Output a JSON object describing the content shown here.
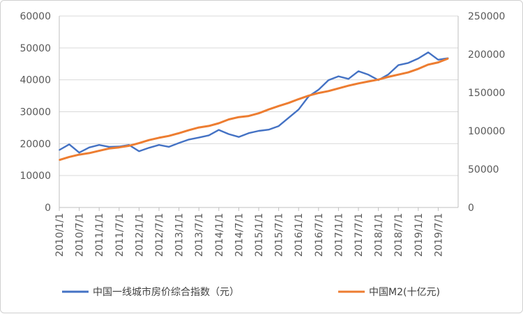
{
  "chart_data": {
    "type": "line",
    "title": "",
    "xlabel": "",
    "ylabel": "",
    "x_tick_labels": [
      "2010/1/1",
      "2010/7/1",
      "2011/1/1",
      "2011/7/1",
      "2012/1/1",
      "2012/7/1",
      "2013/1/1",
      "2013/7/1",
      "2014/1/1",
      "2014/7/1",
      "2015/1/1",
      "2015/7/1",
      "2016/1/1",
      "2016/7/1",
      "2017/1/1",
      "2017/7/1",
      "2018/1/1",
      "2018/7/1",
      "2019/1/1",
      "2019/7/1"
    ],
    "y_left_ticks": [
      "0",
      "10000",
      "20000",
      "30000",
      "40000",
      "50000",
      "60000"
    ],
    "y_right_ticks": [
      "0",
      "50000",
      "100000",
      "150000",
      "200000",
      "250000"
    ],
    "ylim_left": [
      0,
      60000
    ],
    "ylim_right": [
      0,
      250000
    ],
    "grid": "horizontal",
    "legend_position": "bottom",
    "x": [
      "2010/1",
      "2010/4",
      "2010/7",
      "2010/10",
      "2011/1",
      "2011/4",
      "2011/7",
      "2011/10",
      "2012/1",
      "2012/4",
      "2012/7",
      "2012/10",
      "2013/1",
      "2013/4",
      "2013/7",
      "2013/10",
      "2014/1",
      "2014/4",
      "2014/7",
      "2014/10",
      "2015/1",
      "2015/4",
      "2015/7",
      "2015/10",
      "2016/1",
      "2016/4",
      "2016/7",
      "2016/10",
      "2017/1",
      "2017/4",
      "2017/7",
      "2017/10",
      "2018/1",
      "2018/4",
      "2018/7",
      "2018/10",
      "2019/1",
      "2019/4",
      "2019/7",
      "2019/10"
    ],
    "series": [
      {
        "name": "中国一线城市房价综合指数（元）",
        "axis": "left",
        "color": "#4472c4",
        "values": [
          18000,
          19800,
          17200,
          18800,
          19600,
          19000,
          19100,
          19600,
          17600,
          18700,
          19600,
          19000,
          20200,
          21300,
          21900,
          22600,
          24300,
          23000,
          22100,
          23300,
          24000,
          24400,
          25500,
          28100,
          30700,
          34800,
          36900,
          39900,
          41100,
          40300,
          42700,
          41600,
          39900,
          41700,
          44600,
          45300,
          46700,
          48600,
          46300,
          46800
        ]
      },
      {
        "name": "中国M2(十亿元)",
        "axis": "right",
        "color": "#ed7d31",
        "values": [
          62000,
          66000,
          69000,
          71000,
          74000,
          77000,
          78500,
          80500,
          84000,
          88000,
          91000,
          93500,
          97000,
          101000,
          104500,
          106500,
          110000,
          115000,
          118000,
          119500,
          123000,
          128000,
          132500,
          136500,
          141500,
          146000,
          149500,
          152000,
          155500,
          159000,
          162000,
          164500,
          167000,
          170500,
          173500,
          176500,
          181000,
          186500,
          189500,
          194500
        ]
      }
    ]
  }
}
